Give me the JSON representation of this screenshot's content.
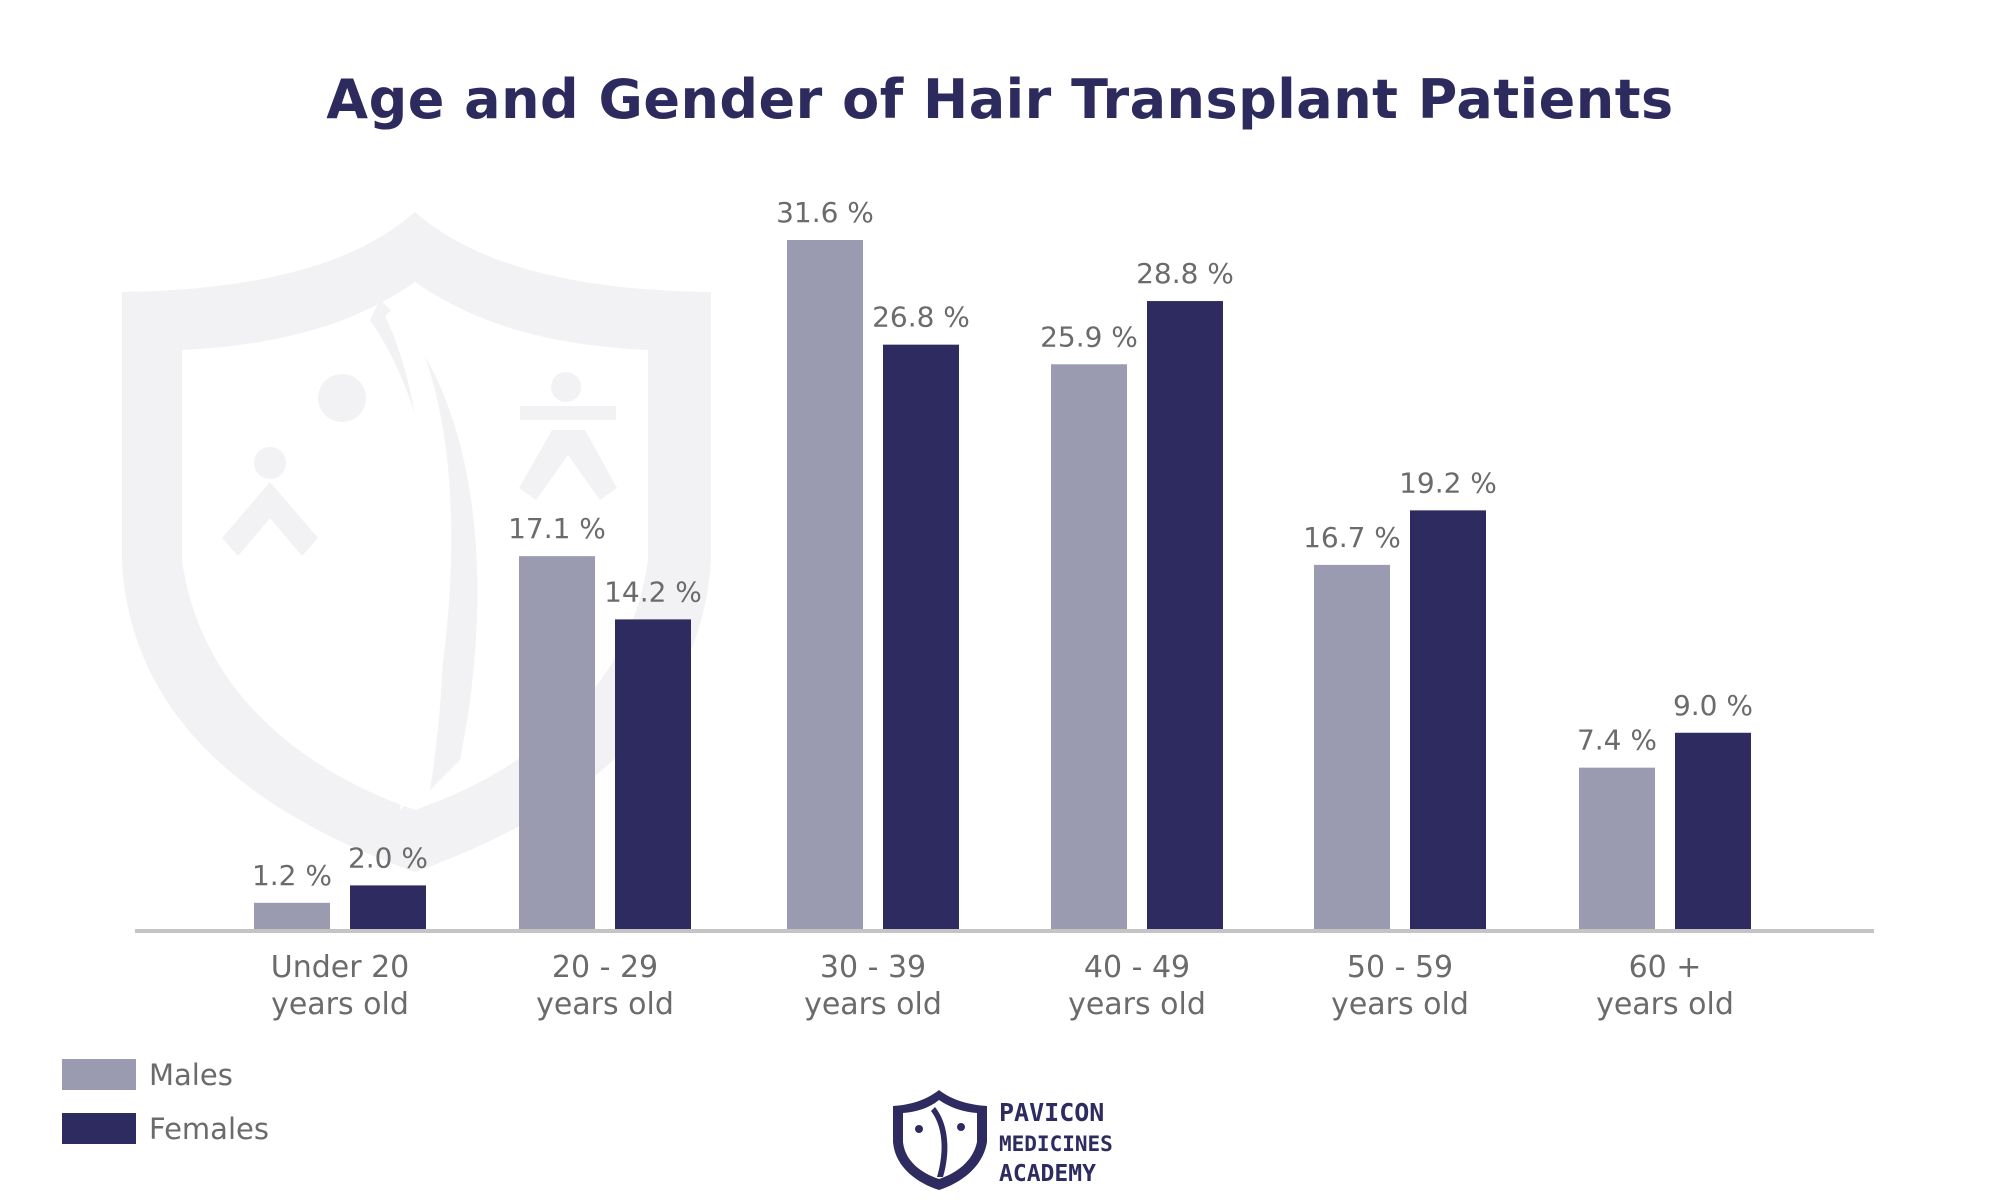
{
  "chart_data": {
    "type": "bar",
    "title": "Age and Gender of Hair Transplant Patients",
    "categories": [
      [
        "Under 20",
        "years old"
      ],
      [
        "20 - 29",
        "years old"
      ],
      [
        "30 - 39",
        "years old"
      ],
      [
        "40 - 49",
        "years old"
      ],
      [
        "50 - 59",
        "years old"
      ],
      [
        "60 +",
        "years old"
      ]
    ],
    "series": [
      {
        "name": "Males",
        "color": "#9a9ab0",
        "values": [
          1.2,
          17.1,
          31.6,
          25.9,
          16.7,
          7.4
        ],
        "labels": [
          "1.2 %",
          "17.1 %",
          "31.6 %",
          "25.9 %",
          "16.7 %",
          "7.4 %"
        ]
      },
      {
        "name": "Females",
        "color": "#2e2b60",
        "values": [
          2.0,
          14.2,
          26.8,
          28.8,
          19.2,
          9.0
        ],
        "labels": [
          "2.0 %",
          "14.2 %",
          "26.8 %",
          "28.8 %",
          "19.2 %",
          "9.0 %"
        ]
      }
    ],
    "xlabel": "",
    "ylabel": "",
    "ylim": [
      0,
      31.6
    ],
    "grid": false,
    "legend": "bottom-left"
  },
  "logo": {
    "lines": [
      "PAVICON",
      "MEDICINES",
      "ACADEMY"
    ]
  },
  "colors": {
    "title": "#2d2a5e",
    "axis": "#c4c4c4",
    "watermark": "#f2f2f4"
  }
}
